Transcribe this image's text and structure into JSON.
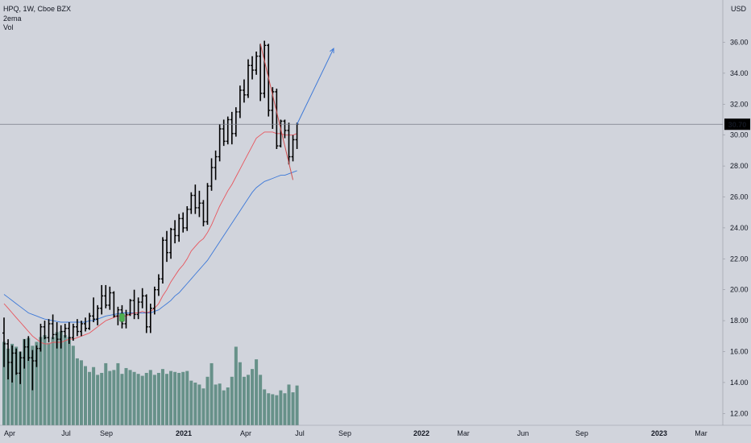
{
  "header": {
    "symbol_line": "HPQ, 1W, Cboe BZX",
    "indicator_1": "2ema",
    "indicator_2": "Vol",
    "currency": "USD"
  },
  "colors": {
    "background": "#d1d4dc",
    "bar": "#000000",
    "ema_fast": "#e8545c",
    "ema_slow": "#3c78d8",
    "volume": "#5b8a7f",
    "trendline_down": "#d05050",
    "projection_arrow": "#3c78d8",
    "price_label_bg": "#000000",
    "price_label_text": "#ffffff"
  },
  "chart_data": {
    "type": "ohlc",
    "timeframe": "1W",
    "ylim": [
      11.2,
      37.3
    ],
    "y_ticks": [
      "12.00",
      "14.00",
      "16.00",
      "18.00",
      "20.00",
      "22.00",
      "24.00",
      "26.00",
      "28.00",
      "30.00",
      "32.00",
      "34.00",
      "36.00"
    ],
    "x_ticks": [
      "Apr",
      "Jul",
      "Sep",
      "2021",
      "Apr",
      "Jul",
      "Sep",
      "2022",
      "Mar",
      "Jun",
      "Sep",
      "2023",
      "Mar"
    ],
    "last_price": "30.70",
    "series": [
      {
        "name": "OHLC",
        "values": [
          [
            17.2,
            18.2,
            15.0,
            16.5
          ],
          [
            16.5,
            16.8,
            14.2,
            15.3
          ],
          [
            15.3,
            16.4,
            14.0,
            15.9
          ],
          [
            15.9,
            16.2,
            14.5,
            14.6
          ],
          [
            14.6,
            16.0,
            13.9,
            15.6
          ],
          [
            15.6,
            16.8,
            14.9,
            16.3
          ],
          [
            16.3,
            17.0,
            15.4,
            15.6
          ],
          [
            15.6,
            16.1,
            13.5,
            15.4
          ],
          [
            15.4,
            16.4,
            15.0,
            16.2
          ],
          [
            16.2,
            17.8,
            16.0,
            17.6
          ],
          [
            17.6,
            18.0,
            16.8,
            16.9
          ],
          [
            16.9,
            18.1,
            16.6,
            17.8
          ],
          [
            17.8,
            18.4,
            16.8,
            17.1
          ],
          [
            17.1,
            17.9,
            16.2,
            16.8
          ],
          [
            16.8,
            17.7,
            16.2,
            17.3
          ],
          [
            17.3,
            17.8,
            16.9,
            17.5
          ],
          [
            17.5,
            17.9,
            16.5,
            16.9
          ],
          [
            16.9,
            17.8,
            16.7,
            17.6
          ],
          [
            17.6,
            18.1,
            17.0,
            17.3
          ],
          [
            17.3,
            18.0,
            17.0,
            17.8
          ],
          [
            17.8,
            18.2,
            17.3,
            17.5
          ],
          [
            17.5,
            18.5,
            17.4,
            18.3
          ],
          [
            18.3,
            19.5,
            17.9,
            18.1
          ],
          [
            18.1,
            19.0,
            17.7,
            18.8
          ],
          [
            18.8,
            20.3,
            18.4,
            19.6
          ],
          [
            19.6,
            20.3,
            18.8,
            19.0
          ],
          [
            19.0,
            20.2,
            18.7,
            19.8
          ],
          [
            19.8,
            19.9,
            18.2,
            18.3
          ],
          [
            18.3,
            18.9,
            17.7,
            18.7
          ],
          [
            18.7,
            19.0,
            17.5,
            17.8
          ],
          [
            17.8,
            18.7,
            17.5,
            18.4
          ],
          [
            18.4,
            19.4,
            18.3,
            19.3
          ],
          [
            19.3,
            20.0,
            18.1,
            18.4
          ],
          [
            18.4,
            19.5,
            18.1,
            19.2
          ],
          [
            19.2,
            20.1,
            18.8,
            19.6
          ],
          [
            19.6,
            19.7,
            17.2,
            17.6
          ],
          [
            17.6,
            19.1,
            17.2,
            18.8
          ],
          [
            18.8,
            20.2,
            18.4,
            20.0
          ],
          [
            20.0,
            21.0,
            19.6,
            20.7
          ],
          [
            20.7,
            23.4,
            20.4,
            23.2
          ],
          [
            23.2,
            23.8,
            21.8,
            22.4
          ],
          [
            22.4,
            24.0,
            22.0,
            23.9
          ],
          [
            23.9,
            24.5,
            23.0,
            23.5
          ],
          [
            23.5,
            24.9,
            23.1,
            24.6
          ],
          [
            24.6,
            25.0,
            23.7,
            24.0
          ],
          [
            24.0,
            25.4,
            23.8,
            25.2
          ],
          [
            25.2,
            26.3,
            24.9,
            26.1
          ],
          [
            26.1,
            26.8,
            24.9,
            25.3
          ],
          [
            25.3,
            26.4,
            24.7,
            25.6
          ],
          [
            25.6,
            25.8,
            24.1,
            24.4
          ],
          [
            24.4,
            26.9,
            24.2,
            26.7
          ],
          [
            26.7,
            28.5,
            26.4,
            27.9
          ],
          [
            27.9,
            29.0,
            27.1,
            28.6
          ],
          [
            28.6,
            30.7,
            28.3,
            30.4
          ],
          [
            30.4,
            31.0,
            29.3,
            29.6
          ],
          [
            29.6,
            31.2,
            29.4,
            31.0
          ],
          [
            31.0,
            31.5,
            29.4,
            30.1
          ],
          [
            30.1,
            31.8,
            29.9,
            31.5
          ],
          [
            31.5,
            33.2,
            31.1,
            32.9
          ],
          [
            32.9,
            33.6,
            32.1,
            32.6
          ],
          [
            32.6,
            34.9,
            32.4,
            34.5
          ],
          [
            34.5,
            35.1,
            33.6,
            34.2
          ],
          [
            34.2,
            35.4,
            33.9,
            35.1
          ],
          [
            35.1,
            35.9,
            32.2,
            32.7
          ],
          [
            32.7,
            36.1,
            32.4,
            35.8
          ],
          [
            35.8,
            35.9,
            31.2,
            31.6
          ],
          [
            31.6,
            33.1,
            30.4,
            32.8
          ],
          [
            32.8,
            33.0,
            29.1,
            29.3
          ],
          [
            29.3,
            31.0,
            29.2,
            30.9
          ],
          [
            30.9,
            31.0,
            29.8,
            30.3
          ],
          [
            30.3,
            30.8,
            28.1,
            28.6
          ],
          [
            28.6,
            30.0,
            28.3,
            29.7
          ],
          [
            29.7,
            30.8,
            29.1,
            30.7
          ]
        ]
      },
      {
        "name": "2ema fast",
        "values": [
          19.1,
          18.8,
          18.5,
          18.2,
          17.9,
          17.6,
          17.3,
          17.0,
          16.8,
          16.6,
          16.5,
          16.5,
          16.6,
          16.6,
          16.6,
          16.7,
          16.8,
          16.8,
          16.9,
          17.0,
          17.1,
          17.2,
          17.4,
          17.6,
          17.8,
          18.0,
          18.1,
          18.2,
          18.3,
          18.3,
          18.3,
          18.4,
          18.5,
          18.5,
          18.6,
          18.5,
          18.6,
          18.8,
          19.1,
          19.6,
          20.0,
          20.5,
          20.9,
          21.3,
          21.6,
          22.0,
          22.5,
          22.8,
          23.1,
          23.3,
          23.7,
          24.2,
          24.8,
          25.4,
          25.9,
          26.4,
          26.8,
          27.3,
          27.8,
          28.3,
          28.8,
          29.3,
          29.8,
          30.0,
          30.2,
          30.2,
          30.2,
          30.1,
          30.1,
          30.0,
          30.0,
          30.0,
          30.1
        ]
      },
      {
        "name": "2ema slow",
        "values": [
          19.7,
          19.5,
          19.3,
          19.1,
          18.9,
          18.7,
          18.5,
          18.4,
          18.3,
          18.2,
          18.1,
          18.05,
          18.0,
          17.95,
          17.9,
          17.9,
          17.9,
          17.9,
          17.9,
          17.9,
          17.9,
          18.0,
          18.0,
          18.1,
          18.2,
          18.3,
          18.35,
          18.4,
          18.45,
          18.5,
          18.5,
          18.5,
          18.5,
          18.5,
          18.5,
          18.5,
          18.5,
          18.6,
          18.7,
          18.9,
          19.1,
          19.3,
          19.6,
          19.8,
          20.1,
          20.4,
          20.7,
          21.0,
          21.3,
          21.6,
          21.9,
          22.3,
          22.7,
          23.1,
          23.5,
          23.9,
          24.3,
          24.7,
          25.1,
          25.5,
          25.9,
          26.3,
          26.6,
          26.8,
          27.0,
          27.1,
          27.2,
          27.3,
          27.4,
          27.4,
          27.5,
          27.6,
          27.7
        ]
      },
      {
        "name": "Vol",
        "values": [
          8.6,
          7.9,
          8.4,
          8.1,
          7.6,
          8.9,
          9.0,
          8.2,
          8.6,
          9.1,
          9.3,
          8.5,
          9.1,
          9.6,
          9.7,
          9.3,
          9.1,
          8.2,
          6.9,
          6.7,
          6.1,
          5.5,
          6.0,
          5.2,
          5.4,
          6.4,
          5.6,
          5.7,
          6.4,
          5.3,
          5.9,
          5.7,
          5.5,
          5.3,
          5.1,
          5.4,
          5.7,
          5.2,
          5.4,
          5.8,
          5.3,
          5.6,
          5.5,
          5.4,
          5.5,
          5.6,
          4.6,
          4.4,
          4.2,
          3.8,
          5.0,
          6.4,
          4.2,
          4.3,
          3.6,
          3.9,
          5.0,
          8.1,
          6.5,
          5.0,
          5.2,
          5.8,
          6.8,
          5.2,
          3.7,
          3.3,
          3.2,
          3.1,
          3.6,
          3.3,
          4.2,
          3.4,
          4.1
        ]
      }
    ],
    "trendline_down": {
      "from": [
        63,
        35.9
      ],
      "to": [
        71,
        27.1
      ]
    },
    "projection_arrow": {
      "from": [
        72,
        30.7
      ],
      "to": [
        81,
        35.6
      ]
    },
    "signal_marker": {
      "bar": 29,
      "price": 18.2
    }
  }
}
